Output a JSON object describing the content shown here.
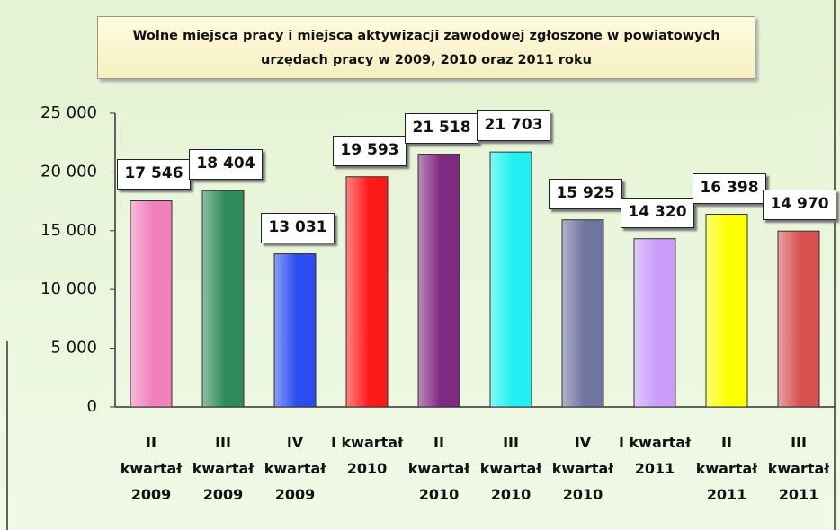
{
  "chart_data": {
    "type": "bar",
    "title": "Wolne miejsca pracy i miejsca aktywizacji zawodowej zgłoszone w powiatowych urzędach pracy w 2009, 2010 oraz 2011 roku",
    "categories": [
      "II kwartał 2009",
      "III kwartał 2009",
      "IV kwartał 2009",
      "I kwartał 2010",
      "II kwartał 2010",
      "III kwartał 2010",
      "IV kwartał 2010",
      "I kwartał 2011",
      "II kwartał 2011",
      "III kwartał 2011"
    ],
    "values": [
      17546,
      18404,
      13031,
      19593,
      21518,
      21703,
      15925,
      14320,
      16398,
      14970
    ],
    "value_labels": [
      "17 546",
      "18 404",
      "13 031",
      "19 593",
      "21 518",
      "21 703",
      "15 925",
      "14 320",
      "16 398",
      "14 970"
    ],
    "colors": [
      "#f080bc",
      "#2e8a58",
      "#2a4cf0",
      "#ff1a1a",
      "#7e2a80",
      "#20f0f0",
      "#6e74a0",
      "#c89cf8",
      "#ffff00",
      "#d85050"
    ],
    "ylim": [
      0,
      25000
    ],
    "yticks": [
      0,
      {
        "value": 5000,
        "label": "5 000"
      },
      {
        "value": 10000,
        "label": "10 000"
      },
      {
        "value": 15000,
        "label": "15 000"
      },
      {
        "value": 20000,
        "label": "20 000"
      },
      {
        "value": 25000,
        "label": "25 000"
      }
    ],
    "grid": false
  }
}
